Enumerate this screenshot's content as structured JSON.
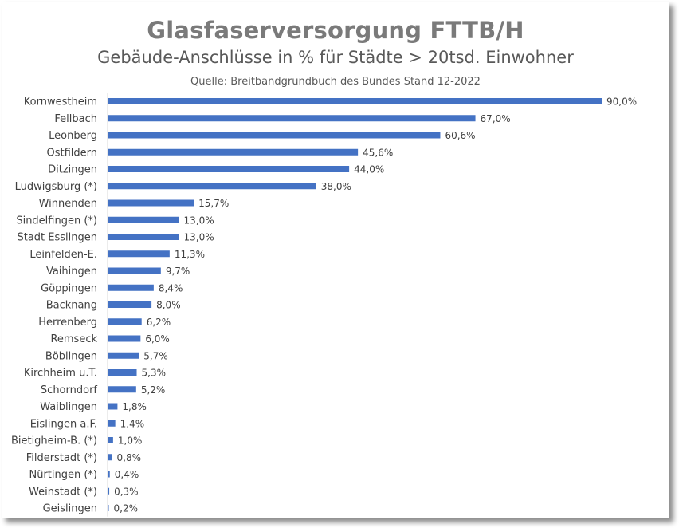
{
  "chart_data": {
    "type": "bar",
    "orientation": "horizontal",
    "title": "Glasfaserversorgung FTTB/H",
    "subtitle": "Gebäude-Anschlüsse in % für Städte > 20tsd. Einwohner",
    "source": "Quelle: Breitbandgrundbuch des Bundes Stand 12-2022",
    "xlim": [
      0,
      100
    ],
    "grid": false,
    "bar_color": "#4472c4",
    "categories": [
      "Kornwestheim",
      "Fellbach",
      "Leonberg",
      "Ostfildern",
      "Ditzingen",
      "Ludwigsburg (*)",
      "Winnenden",
      "Sindelfingen (*)",
      "Stadt Esslingen",
      "Leinfelden-E.",
      "Vaihingen",
      "Göppingen",
      "Backnang",
      "Herrenberg",
      "Remseck",
      "Böblingen",
      "Kirchheim u.T.",
      "Schorndorf",
      "Waiblingen",
      "Eislingen a.F.",
      "Bietigheim-B. (*)",
      "Filderstadt (*)",
      "Nürtingen (*)",
      "Weinstadt (*)",
      "Geislingen"
    ],
    "values": [
      90.0,
      67.0,
      60.6,
      45.6,
      44.0,
      38.0,
      15.7,
      13.0,
      13.0,
      11.3,
      9.7,
      8.4,
      8.0,
      6.2,
      6.0,
      5.7,
      5.3,
      5.2,
      1.8,
      1.4,
      1.0,
      0.8,
      0.4,
      0.3,
      0.2
    ],
    "value_labels": [
      "90,0%",
      "67,0%",
      "60,6%",
      "45,6%",
      "44,0%",
      "38,0%",
      "15,7%",
      "13,0%",
      "13,0%",
      "11,3%",
      "9,7%",
      "8,4%",
      "8,0%",
      "6,2%",
      "6,0%",
      "5,7%",
      "5,3%",
      "5,2%",
      "1,8%",
      "1,4%",
      "1,0%",
      "0,8%",
      "0,4%",
      "0,3%",
      "0,2%"
    ]
  }
}
